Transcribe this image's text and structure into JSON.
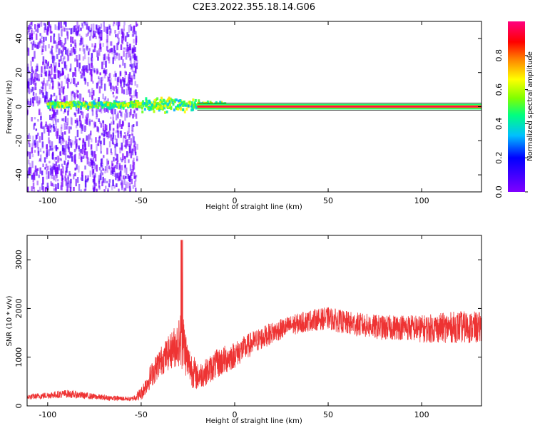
{
  "figure": {
    "title": "C2E3.2022.355.18.14.G06"
  },
  "chart_data": [
    {
      "type": "heatmap",
      "xlabel": "Height of straight line (km)",
      "ylabel": "Frequency (Hz)",
      "xlim": [
        -111,
        132
      ],
      "ylim": [
        -50,
        50
      ],
      "xticks": [
        -100,
        -50,
        0,
        50,
        100
      ],
      "yticks": [
        -40,
        -20,
        0,
        20,
        40
      ],
      "colorbar": {
        "label": "Normalized spectral amplitude",
        "range": [
          0.0,
          1.0
        ],
        "ticks": [
          0.0,
          0.2,
          0.4,
          0.6,
          0.8
        ],
        "colormap": [
          "#8000ff",
          "#0000ff",
          "#00bfff",
          "#00ff80",
          "#80ff00",
          "#ffff00",
          "#ff8000",
          "#ff0000",
          "#ff0080"
        ]
      },
      "features": [
        {
          "name": "scattered noise",
          "x_range": [
            -111,
            -52
          ],
          "freq_range": [
            -50,
            50
          ],
          "amplitude": 0.05
        },
        {
          "name": "signal band",
          "x_range": [
            -100,
            -5
          ],
          "freq_center": 1,
          "amplitude": 0.45
        },
        {
          "name": "strong carrier",
          "x_range": [
            -20,
            132
          ],
          "freq_center": 0,
          "amplitude": 0.95
        }
      ],
      "grid": false
    },
    {
      "type": "line",
      "xlabel": "Height of straight line (km)",
      "ylabel": "SNR (10 * v/v)",
      "xlim": [
        -111,
        132
      ],
      "ylim": [
        0,
        3500
      ],
      "xticks": [
        -100,
        -50,
        0,
        50,
        100
      ],
      "yticks": [
        0,
        1000,
        2000,
        3000
      ],
      "series": [
        {
          "color": "#ee3333",
          "envelope_x": [
            -111,
            -90,
            -70,
            -55,
            -50,
            -45,
            -40,
            -35,
            -30,
            -28,
            -25,
            -22,
            -20,
            -15,
            -10,
            -5,
            0,
            10,
            20,
            30,
            40,
            50,
            60,
            70,
            80,
            90,
            100,
            110,
            120,
            132
          ],
          "envelope_mean": [
            180,
            250,
            170,
            140,
            250,
            600,
            900,
            1100,
            1300,
            1400,
            900,
            700,
            600,
            700,
            850,
            950,
            1050,
            1300,
            1500,
            1650,
            1750,
            1800,
            1700,
            1650,
            1600,
            1620,
            1580,
            1600,
            1620,
            1600
          ],
          "envelope_spread": [
            100,
            150,
            100,
            80,
            250,
            450,
            550,
            650,
            900,
            1200,
            700,
            650,
            500,
            500,
            550,
            550,
            500,
            450,
            400,
            380,
            400,
            420,
            450,
            450,
            470,
            480,
            520,
            560,
            600,
            600
          ]
        }
      ],
      "grid": false
    }
  ]
}
